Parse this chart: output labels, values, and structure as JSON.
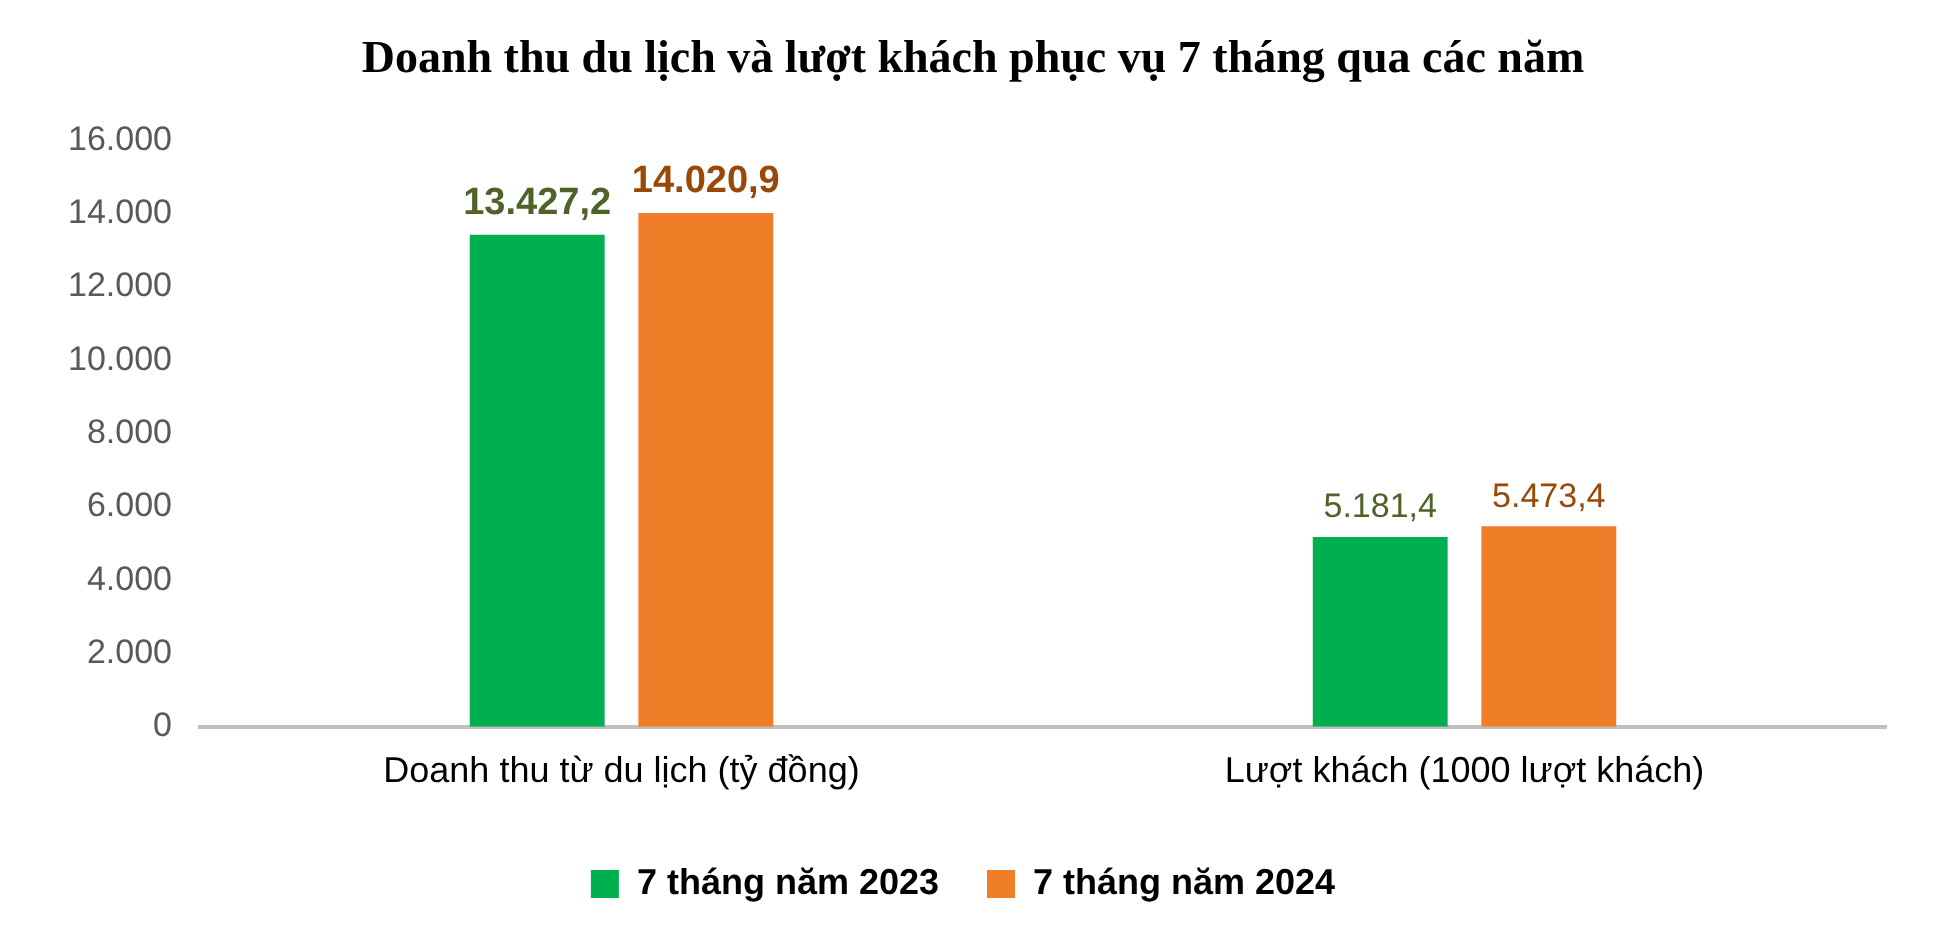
{
  "chart_data": {
    "type": "bar",
    "title": "Doanh thu du lịch và lượt khách phục vụ 7 tháng qua các năm",
    "categories": [
      "Doanh thu từ du lịch (tỷ đồng)",
      "Lượt khách (1000 lượt khách)"
    ],
    "series": [
      {
        "name": "7 tháng năm 2023",
        "color": "#00b050",
        "values": [
          13427.2,
          5181.4
        ],
        "value_labels": [
          "13.427,2",
          "5.181,4"
        ]
      },
      {
        "name": "7 tháng năm 2024",
        "color": "#f07d28",
        "values": [
          14020.9,
          5473.4
        ],
        "value_labels": [
          "14.020,9",
          "5.473,4"
        ]
      }
    ],
    "ylim": [
      0,
      16000
    ],
    "yticks": [
      {
        "value": 0,
        "label": "0"
      },
      {
        "value": 2000,
        "label": "2.000"
      },
      {
        "value": 4000,
        "label": "4.000"
      },
      {
        "value": 6000,
        "label": "6.000"
      },
      {
        "value": 8000,
        "label": "8.000"
      },
      {
        "value": 10000,
        "label": "10.000"
      },
      {
        "value": 12000,
        "label": "12.000"
      },
      {
        "value": 14000,
        "label": "14.000"
      },
      {
        "value": 16000,
        "label": "16.000"
      }
    ],
    "grid": false,
    "legend": "bottom"
  }
}
